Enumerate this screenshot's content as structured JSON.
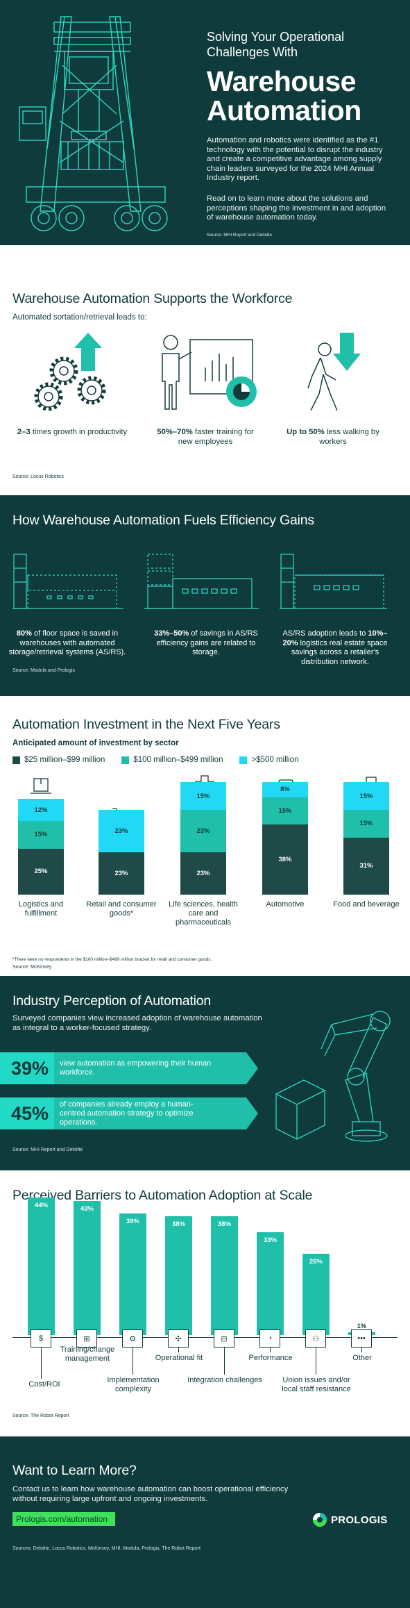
{
  "hero": {
    "subtitle": "Solving Your Operational Challenges With",
    "title": "Warehouse Automation",
    "para1": "Automation and robotics were identified as the #1 technology with the potential to disrupt the industry and create a competitive advantage among supply chain leaders surveyed for the 2024 MHI Annual Industry report.",
    "para2": "Read on to learn more about the solutions and perceptions shaping the investment in and adoption of warehouse automation today.",
    "source": "Source: MHI Report and Deloitte"
  },
  "workforce": {
    "title": "Warehouse Automation Supports the Workforce",
    "subtitle": "Automated sortation/retrieval leads to:",
    "items": [
      {
        "bold": "2–3",
        "text": " times growth in productivity"
      },
      {
        "bold": "50%–70%",
        "text": " faster training for new employees"
      },
      {
        "bold": "Up to 50%",
        "text": " less walking by workers"
      }
    ],
    "source": "Source: Locus Robotics"
  },
  "efficiency": {
    "title": "How Warehouse Automation Fuels Efficiency Gains",
    "items": [
      {
        "bold": "80%",
        "text": " of floor space is saved in warehouses with automated storage/retrieval systems (AS/RS)."
      },
      {
        "bold": "33%–50%",
        "text": " of savings in AS/RS efficiency gains are related to storage."
      },
      {
        "pre": "AS/RS adoption leads to ",
        "bold": "10%–20%",
        "text": " logistics real estate space savings across a retailer's distribution network."
      }
    ],
    "source": "Source: Modula and Prologis"
  },
  "investment": {
    "title": "Automation Investment in the Next Five Years",
    "subtitle": "Anticipated amount of investment by sector",
    "note": "*There were no respondents in the $100 million–$499 million bracket for retail and consumer goods.",
    "source": "Source: McKinsey",
    "colors": {
      "low": "#1f4a48",
      "mid": "#1fbfaa",
      "high": "#21d9f5"
    }
  },
  "chart_data": [
    {
      "type": "bar",
      "stacked": true,
      "categories": [
        "Logistics and fulfillment",
        "Retail and consumer goods*",
        "Life sciences, health care and pharmaceuticals",
        "Automotive",
        "Food and beverage"
      ],
      "series": [
        {
          "name": "$25 million–$99 million",
          "values": [
            25,
            23,
            23,
            38,
            31
          ],
          "labels": [
            "25%",
            "23%",
            "23%",
            "38%",
            "31%"
          ]
        },
        {
          "name": "$100 million–$499 million",
          "values": [
            15,
            0,
            23,
            15,
            15
          ],
          "labels": [
            "15%",
            "",
            "23%",
            "15%",
            "15%"
          ]
        },
        {
          "name": ">$500 million",
          "values": [
            12,
            23,
            15,
            8,
            15
          ],
          "labels": [
            "12%",
            "23%",
            "15%",
            "8%",
            "15%"
          ]
        }
      ]
    },
    {
      "type": "bar",
      "categories": [
        "Cost/ROI",
        "Training/change management",
        "Implementation complexity",
        "Operational fit",
        "Integration challenges",
        "Performance",
        "Union issues and/or local staff resistance",
        "Other"
      ],
      "values": [
        44,
        43,
        39,
        38,
        38,
        33,
        26,
        1
      ],
      "labels": [
        "44%",
        "43%",
        "39%",
        "38%",
        "38%",
        "33%",
        "26%",
        "1%"
      ],
      "icons": [
        "dollar-icon",
        "training-icon",
        "gears-icon",
        "puzzle-icon",
        "flowchart-icon",
        "gauge-icon",
        "people-icon",
        "dots-icon"
      ]
    }
  ],
  "perception": {
    "title": "Industry Perception of Automation",
    "para": "Surveyed companies view increased adoption of warehouse automation as integral to a worker-focused strategy.",
    "stats": [
      {
        "num": "39%",
        "text": "view automation as empowering their human workforce."
      },
      {
        "num": "45%",
        "text": "of companies already employ a human-centred automation strategy to optimize operations."
      }
    ],
    "source": "Source: MHI Report and Deloitte"
  },
  "barriers": {
    "title": "Perceived Barriers to Automation Adoption at Scale",
    "source": "Source: The Robot Report"
  },
  "footer": {
    "title": "Want to Learn More?",
    "para": "Contact us to learn how warehouse automation can boost operational efficiency without requiring large upfront and ongoing investments.",
    "link": "Prologis.com/automation",
    "logo": "PROLOGIS",
    "sources": "Sources: Deloitte, Locus Robotics, McKinsey, MHI, Modula, Prologis, The Robot Report"
  }
}
